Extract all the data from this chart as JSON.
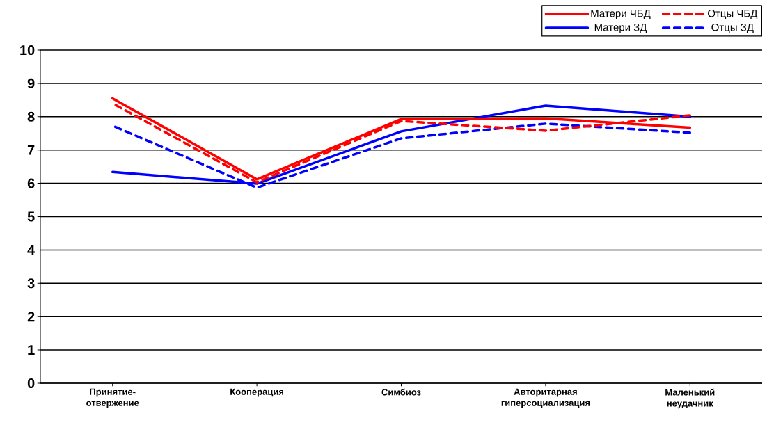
{
  "chart_data": {
    "type": "line",
    "categories": [
      "Принятие-отвержение",
      "Кооперация",
      "Симбиоз",
      "Авторитарная гиперсоциализация",
      "Маленький неудачник"
    ],
    "series": [
      {
        "name": "Матери ЧБД",
        "color": "#ff0000",
        "line_style": "solid",
        "values": [
          8.55,
          6.12,
          7.93,
          7.95,
          7.67
        ]
      },
      {
        "name": "Отцы ЧБД",
        "color": "#ff0000",
        "line_style": "dashed",
        "values": [
          8.4,
          6.03,
          7.87,
          7.58,
          8.04
        ]
      },
      {
        "name": "Матери ЗД",
        "color": "#0000ff",
        "line_style": "solid",
        "values": [
          6.34,
          5.99,
          7.56,
          8.33,
          8.0
        ]
      },
      {
        "name": "Отцы ЗД",
        "color": "#0000ff",
        "line_style": "dashed",
        "values": [
          7.73,
          5.87,
          7.35,
          7.79,
          7.52
        ]
      }
    ],
    "ylim": [
      0,
      10
    ],
    "yticks": [
      0,
      1,
      2,
      3,
      4,
      5,
      6,
      7,
      8,
      9,
      10
    ],
    "grid": "y",
    "legend": "top right",
    "marker": "none"
  }
}
